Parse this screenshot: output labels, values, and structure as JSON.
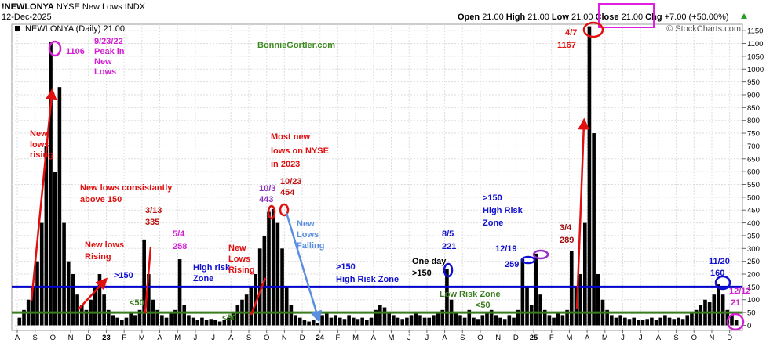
{
  "chart_data": {
    "type": "bar",
    "title": "!NEWLONYA",
    "subtitle": "NYSE New Lows INDX",
    "date": "12-Dec-2025",
    "quote": [
      [
        "Open",
        "21.00"
      ],
      [
        "High",
        "21.00"
      ],
      [
        "Low",
        "21.00"
      ],
      [
        "Close",
        "21.00"
      ],
      [
        "Chg",
        "+7.00 (+50.00%)"
      ]
    ],
    "legend": "!NEWLONYA (Daily) 21.00",
    "copyright": "© StockCharts.com",
    "watermark": "BonnieGortler.com",
    "color": "#000000",
    "values": [
      30,
      60,
      100,
      150,
      250,
      400,
      700,
      1106,
      600,
      930,
      400,
      250,
      200,
      120,
      80,
      60,
      100,
      150,
      200,
      120,
      60,
      40,
      30,
      20,
      30,
      50,
      40,
      60,
      335,
      200,
      100,
      60,
      40,
      30,
      50,
      60,
      258,
      80,
      40,
      30,
      20,
      30,
      20,
      25,
      20,
      15,
      20,
      30,
      50,
      80,
      100,
      120,
      150,
      200,
      300,
      350,
      443,
      454,
      400,
      300,
      150,
      80,
      40,
      30,
      20,
      15,
      20,
      10,
      40,
      50,
      30,
      40,
      30,
      25,
      40,
      30,
      25,
      30,
      20,
      30,
      60,
      80,
      70,
      50,
      40,
      30,
      25,
      30,
      40,
      50,
      40,
      30,
      30,
      40,
      50,
      60,
      221,
      100,
      50,
      40,
      30,
      60,
      30,
      25,
      40,
      50,
      60,
      40,
      30,
      25,
      40,
      30,
      60,
      259,
      150,
      80,
      280,
      120,
      60,
      40,
      30,
      50,
      40,
      60,
      289,
      150,
      200,
      400,
      1167,
      750,
      200,
      100,
      60,
      40,
      30,
      40,
      30,
      25,
      30,
      20,
      20,
      25,
      30,
      20,
      30,
      40,
      30,
      25,
      30,
      25,
      40,
      50,
      60,
      80,
      100,
      90,
      120,
      160,
      120,
      60,
      40,
      21
    ],
    "xlim": [
      0,
      162
    ],
    "xticks": [
      {
        "value": 0,
        "label": "A"
      },
      {
        "value": 4,
        "label": "S"
      },
      {
        "value": 8,
        "label": "O"
      },
      {
        "value": 12,
        "label": "N"
      },
      {
        "value": 16,
        "label": "D"
      },
      {
        "value": 20,
        "label": "23"
      },
      {
        "value": 24,
        "label": "F"
      },
      {
        "value": 28,
        "label": "M"
      },
      {
        "value": 32,
        "label": "A"
      },
      {
        "value": 36,
        "label": "M"
      },
      {
        "value": 40,
        "label": "J"
      },
      {
        "value": 44,
        "label": "J"
      },
      {
        "value": 48,
        "label": "A"
      },
      {
        "value": 52,
        "label": "S"
      },
      {
        "value": 56,
        "label": "O"
      },
      {
        "value": 60,
        "label": "N"
      },
      {
        "value": 64,
        "label": "D"
      },
      {
        "value": 68,
        "label": "24"
      },
      {
        "value": 72,
        "label": "F"
      },
      {
        "value": 76,
        "label": "M"
      },
      {
        "value": 80,
        "label": "A"
      },
      {
        "value": 84,
        "label": "M"
      },
      {
        "value": 88,
        "label": "J"
      },
      {
        "value": 92,
        "label": "J"
      },
      {
        "value": 96,
        "label": "A"
      },
      {
        "value": 100,
        "label": "S"
      },
      {
        "value": 104,
        "label": "O"
      },
      {
        "value": 108,
        "label": "N"
      },
      {
        "value": 112,
        "label": "D"
      },
      {
        "value": 116,
        "label": "25"
      },
      {
        "value": 120,
        "label": "F"
      },
      {
        "value": 124,
        "label": "M"
      },
      {
        "value": 128,
        "label": "A"
      },
      {
        "value": 132,
        "label": "M"
      },
      {
        "value": 136,
        "label": "J"
      },
      {
        "value": 140,
        "label": "J"
      },
      {
        "value": 144,
        "label": "A"
      },
      {
        "value": 148,
        "label": "S"
      },
      {
        "value": 152,
        "label": "O"
      },
      {
        "value": 156,
        "label": "N"
      },
      {
        "value": 160,
        "label": "D"
      }
    ],
    "ylim": [
      -20,
      1175
    ],
    "yticks": [
      0,
      50,
      100,
      150,
      200,
      250,
      300,
      350,
      400,
      450,
      500,
      550,
      600,
      650,
      700,
      750,
      800,
      850,
      900,
      950,
      1000,
      1050,
      1100,
      1150
    ],
    "grid": true,
    "reference_lines": [
      {
        "value": 150,
        "color": "#0000cc"
      },
      {
        "value": 50,
        "color": "#3a7d1e"
      }
    ],
    "annotations": [
      [
        "1106"
      ],
      [
        "9/23/22",
        "Peak in",
        "New",
        "Lows"
      ],
      [
        "New",
        "lows",
        "rising"
      ],
      [
        "New lows consistantly",
        "above 150"
      ],
      [
        "3/13",
        "335"
      ],
      [
        "5/4",
        "258"
      ],
      [
        "New lows",
        "Rising"
      ],
      [
        ">150"
      ],
      [
        "High risk",
        "Zone"
      ],
      [
        "<50"
      ],
      [
        "<50"
      ],
      [
        "New",
        "Lows",
        "Rising"
      ],
      [
        "Most new",
        "lows on NYSE",
        "in 2023"
      ],
      [
        "10/3",
        "443"
      ],
      [
        "10/23",
        "454"
      ],
      [
        "New",
        "Lows",
        "Falling"
      ],
      [
        ">150",
        "High Risk Zone"
      ],
      [
        "One day",
        ">150"
      ],
      [
        "8/5",
        "221"
      ],
      [
        ">150",
        "High Risk",
        "Zone"
      ],
      [
        "12/19"
      ],
      [
        "259"
      ],
      [
        "Low Risk Zone"
      ],
      [
        "<50"
      ],
      [
        "3/4",
        "289"
      ],
      [
        "4/7",
        "1167"
      ],
      [
        "11/20",
        "160"
      ],
      [
        "12/12",
        "21"
      ]
    ]
  }
}
